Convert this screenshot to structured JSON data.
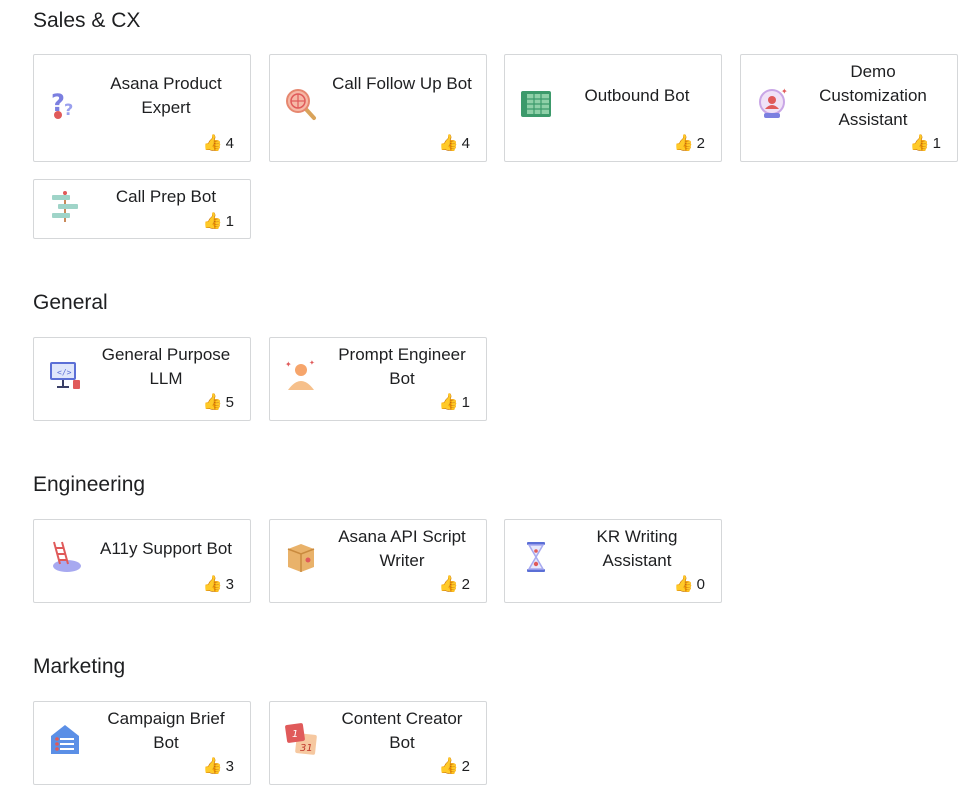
{
  "sections": [
    {
      "title": "Sales & CX",
      "cards": [
        {
          "name": "Asana Product Expert",
          "votes": "4",
          "icon": "question-marks-icon"
        },
        {
          "name": "Call Follow Up Bot",
          "votes": "4",
          "icon": "globe-magnifier-icon"
        },
        {
          "name": "Outbound Bot",
          "votes": "2",
          "icon": "spreadsheet-icon"
        },
        {
          "name": "Demo Customization Assistant",
          "votes": "1",
          "icon": "crystal-ball-icon"
        },
        {
          "name": "Call Prep Bot",
          "votes": "1",
          "icon": "signpost-icon"
        }
      ]
    },
    {
      "title": "General",
      "cards": [
        {
          "name": "General Purpose LLM",
          "votes": "5",
          "icon": "computer-monitor-icon"
        },
        {
          "name": "Prompt Engineer Bot",
          "votes": "1",
          "icon": "person-sparkle-icon"
        }
      ]
    },
    {
      "title": "Engineering",
      "cards": [
        {
          "name": "A11y Support Bot",
          "votes": "3",
          "icon": "ladder-cloud-icon"
        },
        {
          "name": "Asana API Script Writer",
          "votes": "2",
          "icon": "package-box-icon"
        },
        {
          "name": "KR Writing Assistant",
          "votes": "0",
          "icon": "hourglass-icon"
        }
      ]
    },
    {
      "title": "Marketing",
      "cards": [
        {
          "name": "Campaign Brief Bot",
          "votes": "3",
          "icon": "house-checklist-icon"
        },
        {
          "name": "Content Creator Bot",
          "votes": "2",
          "icon": "calendar-icon"
        }
      ]
    }
  ],
  "vote_icon": "thumbs-up-icon",
  "colors": {
    "border": "#d5d7d9",
    "text": "#1e1f21",
    "background": "#ffffff"
  }
}
